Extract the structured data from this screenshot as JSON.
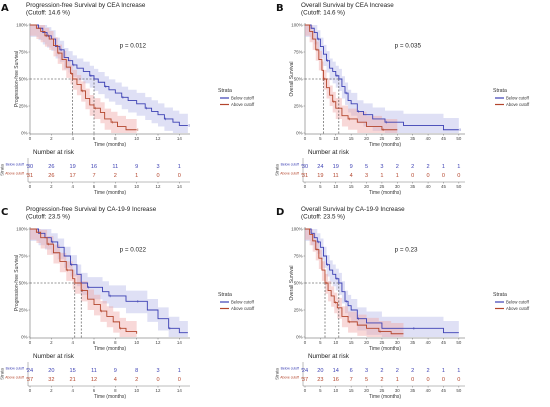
{
  "colors": {
    "below": "#3b3fb3",
    "above": "#b3452c",
    "ci_below": "#b8bbe8",
    "ci_above": "#f0a8a8",
    "guide": "#333333",
    "axis": "#555555"
  },
  "panels": [
    {
      "letter": "A",
      "title": "Progression-free Survival by CEA Increase",
      "subtitle": "(Cutoff: 14.6 %)",
      "ylabel": "Progression-free Survival",
      "xlabel": "Time (months)",
      "pvalue": "p = 0.012",
      "legend_title": "Strata",
      "legend_below": "Below cutoff",
      "legend_above": "Above cutoff",
      "risk_title": "Number at risk",
      "risk_ylabel": "Strata",
      "risk_xlabel": "Time (months)",
      "risk_label_below": "Below cutoff",
      "risk_label_above": "Above cutoff",
      "x_ticks": [
        0,
        2,
        4,
        6,
        8,
        10,
        12,
        14
      ],
      "y_ticks": [
        "0%",
        "25%",
        "50%",
        "75%",
        "100%"
      ],
      "xmax": 15,
      "risk_times": [
        0,
        2,
        4,
        6,
        8,
        10,
        12,
        14
      ],
      "risk_below": [
        30,
        26,
        19,
        16,
        11,
        9,
        3,
        1
      ],
      "risk_above": [
        31,
        26,
        17,
        7,
        2,
        1,
        0,
        0
      ],
      "median_below": 6,
      "median_above": 4,
      "curve_below": [
        [
          0,
          1
        ],
        [
          0.8,
          0.97
        ],
        [
          1.2,
          0.93
        ],
        [
          1.6,
          0.9
        ],
        [
          2,
          0.87
        ],
        [
          2.4,
          0.8
        ],
        [
          2.8,
          0.77
        ],
        [
          3.2,
          0.7
        ],
        [
          3.6,
          0.67
        ],
        [
          4,
          0.63
        ],
        [
          4.4,
          0.6
        ],
        [
          5,
          0.57
        ],
        [
          5.6,
          0.53
        ],
        [
          6,
          0.5
        ],
        [
          6.4,
          0.47
        ],
        [
          7,
          0.43
        ],
        [
          7.4,
          0.4
        ],
        [
          8,
          0.37
        ],
        [
          8.6,
          0.33
        ],
        [
          9.2,
          0.3
        ],
        [
          10,
          0.27
        ],
        [
          10.8,
          0.23
        ],
        [
          11.4,
          0.2
        ],
        [
          12,
          0.17
        ],
        [
          12.6,
          0.13
        ],
        [
          13.4,
          0.1
        ],
        [
          14,
          0.07
        ],
        [
          14.8,
          0.07
        ]
      ],
      "curve_above": [
        [
          0,
          1
        ],
        [
          0.6,
          0.97
        ],
        [
          1,
          0.94
        ],
        [
          1.4,
          0.9
        ],
        [
          1.8,
          0.87
        ],
        [
          2.2,
          0.81
        ],
        [
          2.6,
          0.74
        ],
        [
          3,
          0.68
        ],
        [
          3.4,
          0.61
        ],
        [
          3.8,
          0.55
        ],
        [
          4,
          0.5
        ],
        [
          4.4,
          0.45
        ],
        [
          4.8,
          0.39
        ],
        [
          5.2,
          0.32
        ],
        [
          5.6,
          0.26
        ],
        [
          6,
          0.23
        ],
        [
          6.6,
          0.19
        ],
        [
          7,
          0.13
        ],
        [
          7.6,
          0.1
        ],
        [
          8.2,
          0.06
        ],
        [
          9,
          0.03
        ],
        [
          10,
          0.03
        ]
      ]
    },
    {
      "letter": "B",
      "title": "Overall Survival by CEA Increase",
      "subtitle": "(Cutoff: 14.6 %)",
      "ylabel": "Overall Survival",
      "xlabel": "Time (months)",
      "pvalue": "p = 0.035",
      "legend_title": "Strata",
      "legend_below": "Below cutoff",
      "legend_above": "Above cutoff",
      "risk_title": "Number at risk",
      "risk_ylabel": "Strata",
      "risk_xlabel": "Time (months)",
      "risk_label_below": "Below cutoff",
      "risk_label_above": "Above cutoff",
      "x_ticks": [
        0,
        5,
        10,
        15,
        20,
        25,
        30,
        35,
        40,
        45,
        50
      ],
      "y_ticks": [
        "0%",
        "25%",
        "50%",
        "75%",
        "100%"
      ],
      "xmax": 52,
      "risk_times": [
        0,
        5,
        10,
        15,
        20,
        25,
        30,
        35,
        40,
        45,
        50
      ],
      "risk_below": [
        30,
        24,
        19,
        9,
        5,
        3,
        2,
        2,
        2,
        1,
        1
      ],
      "risk_above": [
        31,
        19,
        11,
        4,
        3,
        1,
        1,
        0,
        0,
        0,
        0
      ],
      "median_below": 11,
      "median_above": 6,
      "curve_below": [
        [
          0,
          1
        ],
        [
          2,
          0.97
        ],
        [
          3,
          0.93
        ],
        [
          4,
          0.87
        ],
        [
          5,
          0.8
        ],
        [
          6,
          0.73
        ],
        [
          7,
          0.67
        ],
        [
          8,
          0.6
        ],
        [
          9,
          0.57
        ],
        [
          10,
          0.53
        ],
        [
          11,
          0.5
        ],
        [
          12,
          0.43
        ],
        [
          13,
          0.37
        ],
        [
          14,
          0.3
        ],
        [
          15,
          0.27
        ],
        [
          17,
          0.2
        ],
        [
          19,
          0.17
        ],
        [
          22,
          0.13
        ],
        [
          26,
          0.1
        ],
        [
          32,
          0.07
        ],
        [
          45,
          0.03
        ],
        [
          50,
          0.03
        ]
      ],
      "curve_above": [
        [
          0,
          1
        ],
        [
          1.5,
          0.94
        ],
        [
          2.5,
          0.87
        ],
        [
          3.5,
          0.77
        ],
        [
          4.5,
          0.68
        ],
        [
          5.5,
          0.58
        ],
        [
          6,
          0.5
        ],
        [
          7,
          0.42
        ],
        [
          8,
          0.35
        ],
        [
          9,
          0.29
        ],
        [
          10,
          0.23
        ],
        [
          12,
          0.16
        ],
        [
          14,
          0.13
        ],
        [
          17,
          0.1
        ],
        [
          20,
          0.06
        ],
        [
          25,
          0.03
        ],
        [
          30,
          0.03
        ]
      ]
    },
    {
      "letter": "C",
      "title": "Progression-free Survival by CA-19-9 Increase",
      "subtitle": "(Cutoff: 23.5 %)",
      "ylabel": "Progression-free Survival",
      "xlabel": "Time (months)",
      "pvalue": "p = 0.022",
      "legend_title": "Strata",
      "legend_below": "Below cutoff",
      "legend_above": "Above cutoff",
      "risk_title": "Number at risk",
      "risk_ylabel": "Strata",
      "risk_xlabel": "Time (months)",
      "risk_label_below": "Below cutoff",
      "risk_label_above": "Above cutoff",
      "x_ticks": [
        0,
        2,
        4,
        6,
        8,
        10,
        12,
        14
      ],
      "y_ticks": [
        "0%",
        "25%",
        "50%",
        "75%",
        "100%"
      ],
      "xmax": 15,
      "risk_times": [
        0,
        2,
        4,
        6,
        8,
        10,
        12,
        14
      ],
      "risk_below": [
        24,
        20,
        15,
        11,
        9,
        8,
        3,
        1
      ],
      "risk_above": [
        37,
        32,
        21,
        12,
        4,
        2,
        0,
        0
      ],
      "median_below": 4.8,
      "median_above": 4.2,
      "curve_below": [
        [
          0,
          1
        ],
        [
          0.8,
          0.96
        ],
        [
          1.4,
          0.92
        ],
        [
          2,
          0.88
        ],
        [
          2.6,
          0.83
        ],
        [
          3.2,
          0.75
        ],
        [
          3.8,
          0.67
        ],
        [
          4.4,
          0.58
        ],
        [
          4.8,
          0.5
        ],
        [
          5.4,
          0.46
        ],
        [
          6,
          0.46
        ],
        [
          6.8,
          0.42
        ],
        [
          7.4,
          0.38
        ],
        [
          8,
          0.38
        ],
        [
          9,
          0.33
        ],
        [
          10,
          0.33
        ],
        [
          11,
          0.25
        ],
        [
          12,
          0.17
        ],
        [
          13,
          0.08
        ],
        [
          14,
          0.04
        ],
        [
          14.8,
          0.04
        ]
      ],
      "curve_above": [
        [
          0,
          1
        ],
        [
          0.6,
          0.97
        ],
        [
          1,
          0.92
        ],
        [
          1.6,
          0.86
        ],
        [
          2.2,
          0.78
        ],
        [
          2.8,
          0.7
        ],
        [
          3.4,
          0.62
        ],
        [
          4,
          0.54
        ],
        [
          4.2,
          0.5
        ],
        [
          4.8,
          0.43
        ],
        [
          5.4,
          0.35
        ],
        [
          6,
          0.3
        ],
        [
          6.6,
          0.24
        ],
        [
          7.2,
          0.19
        ],
        [
          7.8,
          0.14
        ],
        [
          8.4,
          0.08
        ],
        [
          9,
          0.05
        ],
        [
          10,
          0.03
        ]
      ]
    },
    {
      "letter": "D",
      "title": "Overall Survival by CA-19-9 Increase",
      "subtitle": "(Cutoff: 23.5 %)",
      "ylabel": "Overall Survival",
      "xlabel": "Time (months)",
      "pvalue": "p = 0.23",
      "legend_title": "Strata",
      "legend_below": "Below cutoff",
      "legend_above": "Above cutoff",
      "risk_title": "Number at risk",
      "risk_ylabel": "Strata",
      "risk_xlabel": "Time (months)",
      "risk_label_below": "Below cutoff",
      "risk_label_above": "Above cutoff",
      "x_ticks": [
        0,
        5,
        10,
        15,
        20,
        25,
        30,
        35,
        40,
        45,
        50
      ],
      "y_ticks": [
        "0%",
        "25%",
        "50%",
        "75%",
        "100%"
      ],
      "xmax": 52,
      "risk_times": [
        0,
        5,
        10,
        15,
        20,
        25,
        30,
        35,
        40,
        45,
        50
      ],
      "risk_below": [
        24,
        20,
        14,
        6,
        3,
        2,
        2,
        2,
        2,
        1,
        1
      ],
      "risk_above": [
        37,
        23,
        16,
        7,
        5,
        2,
        1,
        0,
        0,
        0,
        0
      ],
      "median_below": 11,
      "median_above": 6.5,
      "curve_below": [
        [
          0,
          1
        ],
        [
          2,
          0.96
        ],
        [
          3,
          0.92
        ],
        [
          4,
          0.88
        ],
        [
          5,
          0.83
        ],
        [
          6,
          0.75
        ],
        [
          7,
          0.67
        ],
        [
          8,
          0.62
        ],
        [
          9,
          0.58
        ],
        [
          10,
          0.54
        ],
        [
          11,
          0.5
        ],
        [
          12,
          0.42
        ],
        [
          13,
          0.33
        ],
        [
          14,
          0.29
        ],
        [
          15,
          0.25
        ],
        [
          17,
          0.17
        ],
        [
          20,
          0.13
        ],
        [
          25,
          0.08
        ],
        [
          35,
          0.08
        ],
        [
          45,
          0.04
        ],
        [
          50,
          0.04
        ]
      ],
      "curve_above": [
        [
          0,
          1
        ],
        [
          1.5,
          0.95
        ],
        [
          2.5,
          0.89
        ],
        [
          3.5,
          0.81
        ],
        [
          4.5,
          0.73
        ],
        [
          5.5,
          0.62
        ],
        [
          6.5,
          0.5
        ],
        [
          7.5,
          0.43
        ],
        [
          8.5,
          0.38
        ],
        [
          9.5,
          0.32
        ],
        [
          10.5,
          0.27
        ],
        [
          12,
          0.19
        ],
        [
          14,
          0.14
        ],
        [
          17,
          0.11
        ],
        [
          20,
          0.08
        ],
        [
          24,
          0.05
        ],
        [
          28,
          0.03
        ],
        [
          32,
          0.03
        ]
      ]
    }
  ],
  "chart_data": [
    {
      "type": "line",
      "title": "Progression-free Survival by CEA Increase",
      "subtitle": "(Cutoff: 14.6 %)",
      "xlabel": "Time (months)",
      "ylabel": "Progression-free Survival",
      "xlim": [
        0,
        15
      ],
      "ylim": [
        0,
        1
      ],
      "legend": "right",
      "series": [
        {
          "name": "Below cutoff",
          "x": [
            0,
            2,
            4,
            6,
            8,
            10,
            12,
            14
          ],
          "values": [
            1,
            0.87,
            0.63,
            0.5,
            0.37,
            0.27,
            0.17,
            0.07
          ]
        },
        {
          "name": "Above cutoff",
          "x": [
            0,
            2,
            4,
            6,
            8,
            10
          ],
          "values": [
            1,
            0.87,
            0.5,
            0.23,
            0.06,
            0.03
          ]
        }
      ],
      "annotation": "p = 0.012"
    },
    {
      "type": "line",
      "title": "Overall Survival by CEA Increase",
      "subtitle": "(Cutoff: 14.6 %)",
      "xlabel": "Time (months)",
      "ylabel": "Overall Survival",
      "xlim": [
        0,
        52
      ],
      "ylim": [
        0,
        1
      ],
      "legend": "right",
      "series": [
        {
          "name": "Below cutoff",
          "x": [
            0,
            5,
            10,
            15,
            20,
            25,
            30,
            35,
            40,
            45,
            50
          ],
          "values": [
            1,
            0.8,
            0.53,
            0.27,
            0.17,
            0.1,
            0.07,
            0.07,
            0.07,
            0.03,
            0.03
          ]
        },
        {
          "name": "Above cutoff",
          "x": [
            0,
            5,
            10,
            15,
            20,
            25,
            30
          ],
          "values": [
            1,
            0.63,
            0.23,
            0.1,
            0.06,
            0.03,
            0.03
          ]
        }
      ],
      "annotation": "p = 0.035"
    },
    {
      "type": "line",
      "title": "Progression-free Survival by CA-19-9 Increase",
      "subtitle": "(Cutoff: 23.5 %)",
      "xlabel": "Time (months)",
      "ylabel": "Progression-free Survival",
      "xlim": [
        0,
        15
      ],
      "ylim": [
        0,
        1
      ],
      "legend": "right",
      "series": [
        {
          "name": "Below cutoff",
          "x": [
            0,
            2,
            4,
            6,
            8,
            10,
            12,
            14
          ],
          "values": [
            1,
            0.88,
            0.62,
            0.46,
            0.38,
            0.33,
            0.17,
            0.04
          ]
        },
        {
          "name": "Above cutoff",
          "x": [
            0,
            2,
            4,
            6,
            8,
            10
          ],
          "values": [
            1,
            0.8,
            0.54,
            0.3,
            0.12,
            0.03
          ]
        }
      ],
      "annotation": "p = 0.022"
    },
    {
      "type": "line",
      "title": "Overall Survival by CA-19-9 Increase",
      "subtitle": "(Cutoff: 23.5 %)",
      "xlabel": "Time (months)",
      "ylabel": "Overall Survival",
      "xlim": [
        0,
        52
      ],
      "ylim": [
        0,
        1
      ],
      "legend": "right",
      "series": [
        {
          "name": "Below cutoff",
          "x": [
            0,
            5,
            10,
            15,
            20,
            25,
            30,
            35,
            40,
            45,
            50
          ],
          "values": [
            1,
            0.83,
            0.54,
            0.25,
            0.13,
            0.08,
            0.08,
            0.08,
            0.08,
            0.04,
            0.04
          ]
        },
        {
          "name": "Above cutoff",
          "x": [
            0,
            5,
            10,
            15,
            20,
            25,
            30
          ],
          "values": [
            1,
            0.68,
            0.3,
            0.12,
            0.08,
            0.05,
            0.03
          ]
        }
      ],
      "annotation": "p = 0.23"
    }
  ]
}
